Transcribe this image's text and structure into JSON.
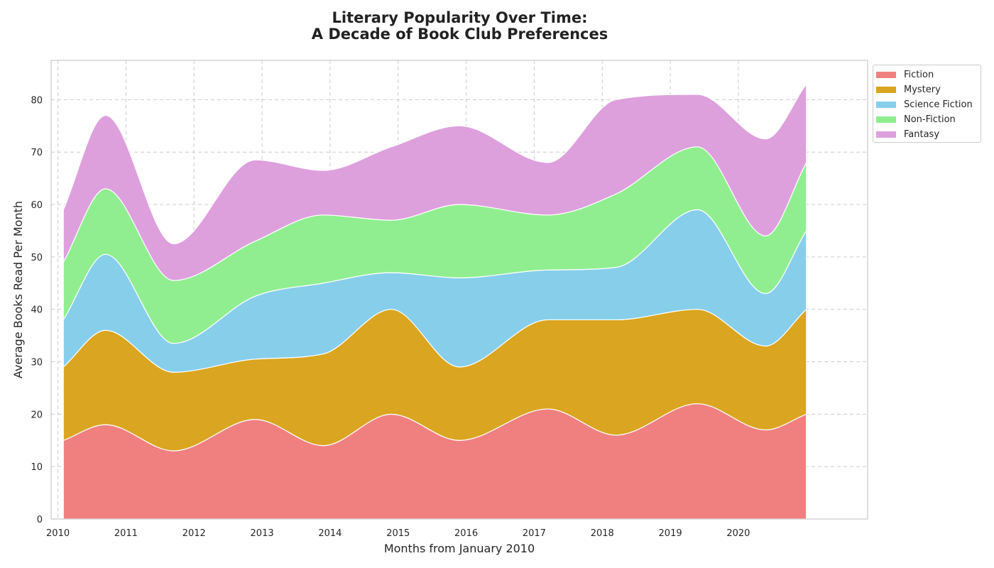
{
  "chart_data": {
    "type": "area",
    "stacked": true,
    "title": "Literary Popularity Over Time:",
    "subtitle": "A Decade of Book Club Preferences",
    "xlabel": "Months from January 2010",
    "ylabel": "Average Books Read Per Month",
    "xlim": [
      2009.9,
      2021.9
    ],
    "ylim": [
      0,
      87.5
    ],
    "x_ticks": [
      2010,
      2011,
      2012,
      2013,
      2014,
      2015,
      2016,
      2017,
      2018,
      2019,
      2020
    ],
    "x_tick_labels": [
      "2010",
      "2011",
      "2012",
      "2013",
      "2014",
      "2015",
      "2016",
      "2017",
      "2018",
      "2019",
      "2020"
    ],
    "y_ticks": [
      0,
      10,
      20,
      30,
      40,
      50,
      60,
      70,
      80
    ],
    "y_tick_labels": [
      "0",
      "10",
      "20",
      "30",
      "40",
      "50",
      "60",
      "70",
      "80"
    ],
    "grid": true,
    "legend_position": "outside top-right",
    "x": [
      2010.08,
      2010.7,
      2011.7,
      2012.9,
      2013.9,
      2014.9,
      2015.9,
      2017.2,
      2018.2,
      2019.4,
      2020.4,
      2021.0
    ],
    "series": [
      {
        "name": "Fiction",
        "color": "#f08080",
        "values": [
          15,
          18,
          13,
          19,
          14,
          20,
          15,
          21,
          16,
          22,
          17,
          20
        ]
      },
      {
        "name": "Mystery",
        "color": "#daa520",
        "values": [
          14,
          18,
          15,
          11.5,
          17.5,
          20,
          14,
          17,
          22,
          18,
          16,
          20
        ]
      },
      {
        "name": "Science Fiction",
        "color": "#87ceeb",
        "values": [
          9,
          14.5,
          5.5,
          12,
          13.5,
          7,
          17,
          9.5,
          10,
          19,
          10,
          15
        ]
      },
      {
        "name": "Non-Fiction",
        "color": "#90ee90",
        "values": [
          11,
          12.5,
          12,
          10.5,
          13,
          10,
          14,
          10.5,
          14,
          12,
          11,
          13
        ]
      },
      {
        "name": "Fantasy",
        "color": "#dda0dd",
        "values": [
          10,
          14,
          7,
          15.5,
          8.5,
          14,
          15,
          10,
          18,
          10,
          18.5,
          15
        ]
      }
    ]
  }
}
